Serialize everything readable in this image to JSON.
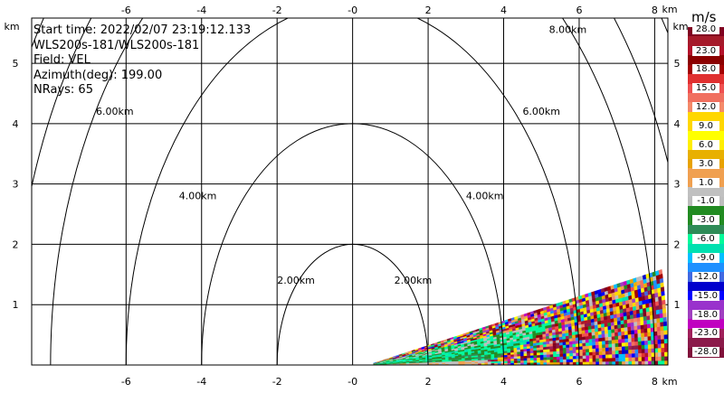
{
  "info": {
    "start_time": "Start time: 2022/02/07 23:19:12.133",
    "instrument": "WLS200s-181/WLS200s-181",
    "field": "Field: VEL",
    "azimuth": "Azimuth(deg): 199.00",
    "nrays": "NRays: 65"
  },
  "chart_data": {
    "type": "heatmap",
    "title": "",
    "xlabel": "km",
    "ylabel": "km",
    "xlim": [
      -8.5,
      8.35
    ],
    "ylim": [
      0,
      5.75
    ],
    "x_ticks": [
      -6,
      -4,
      -2,
      0,
      2,
      4,
      6,
      8
    ],
    "x_tick_labels": [
      "-6",
      "-4",
      "-2",
      "-0",
      "2",
      "4",
      "6",
      "8"
    ],
    "y_ticks": [
      1,
      2,
      3,
      4,
      5
    ],
    "y_tick_labels": [
      "1",
      "2",
      "3",
      "4",
      "5"
    ],
    "grid": true,
    "range_rings_km": [
      2,
      4,
      6,
      8
    ],
    "ring_labels": [
      "2.00km",
      "4.00km",
      "6.00km",
      "8.00km"
    ],
    "sector": {
      "origin_x_km": 0.4,
      "max_range_km": 8.35,
      "elevation_deg": [
        0,
        11.5
      ]
    }
  },
  "colorbar": {
    "title": "m/s",
    "segments": [
      {
        "color": "#800020",
        "label": "28.0"
      },
      {
        "color": "#a51a2a",
        "label": ""
      },
      {
        "color": "#b3112a",
        "label": "23.0"
      },
      {
        "color": "#8b0000",
        "label": ""
      },
      {
        "color": "#a30000",
        "label": "18.0"
      },
      {
        "color": "#e03030",
        "label": ""
      },
      {
        "color": "#ef5050",
        "label": "15.0"
      },
      {
        "color": "#f07060",
        "label": ""
      },
      {
        "color": "#f48a6a",
        "label": "12.0"
      },
      {
        "color": "#ffd700",
        "label": ""
      },
      {
        "color": "#ffd700",
        "label": "9.0"
      },
      {
        "color": "#ffff00",
        "label": ""
      },
      {
        "color": "#ffee00",
        "label": "6.0"
      },
      {
        "color": "#e8b000",
        "label": ""
      },
      {
        "color": "#e8a200",
        "label": "3.0"
      },
      {
        "color": "#f0a050",
        "label": ""
      },
      {
        "color": "#f0a050",
        "label": "1.0"
      },
      {
        "color": "#c0c0c0",
        "label": ""
      },
      {
        "color": "#bdbdbd",
        "label": "-1.0"
      },
      {
        "color": "#228b22",
        "label": ""
      },
      {
        "color": "#228b22",
        "label": "-3.0"
      },
      {
        "color": "#2e8b57",
        "label": ""
      },
      {
        "color": "#00fa9a",
        "label": "-6.0"
      },
      {
        "color": "#00e0b0",
        "label": ""
      },
      {
        "color": "#00bfff",
        "label": "-9.0"
      },
      {
        "color": "#1e90ff",
        "label": ""
      },
      {
        "color": "#4169e1",
        "label": "-12.0"
      },
      {
        "color": "#0000cd",
        "label": ""
      },
      {
        "color": "#0000ff",
        "label": "-15.0"
      },
      {
        "color": "#9932cc",
        "label": ""
      },
      {
        "color": "#a040c0",
        "label": "-18.0"
      },
      {
        "color": "#c000c0",
        "label": ""
      },
      {
        "color": "#a0205a",
        "label": "-23.0"
      },
      {
        "color": "#8b1a4a",
        "label": ""
      },
      {
        "color": "#80103a",
        "label": "-28.0"
      }
    ]
  }
}
